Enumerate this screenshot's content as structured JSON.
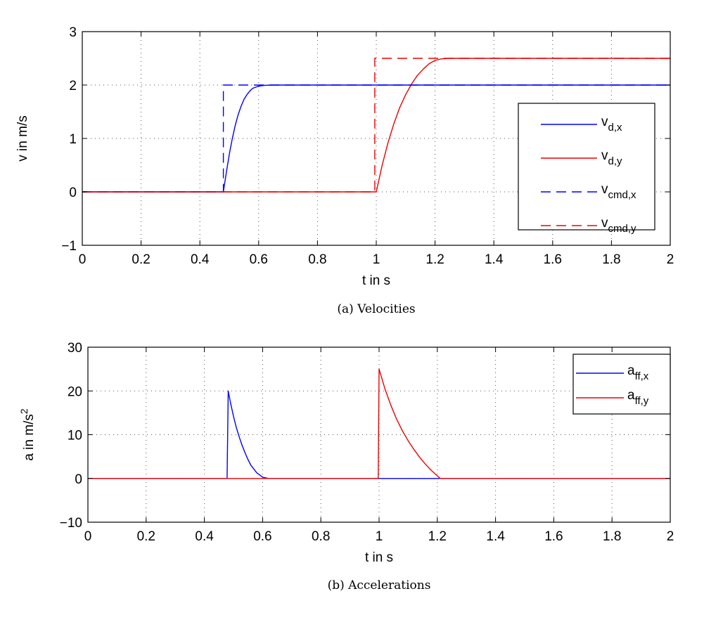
{
  "colors": {
    "blue": "#0000ff",
    "red": "#ee0000"
  },
  "chart_data": [
    {
      "type": "line",
      "title": "",
      "caption": "(a) Velocities",
      "xlabel": "t in s",
      "ylabel": "v in m/s",
      "xlim": [
        0,
        2
      ],
      "ylim": [
        -1,
        3
      ],
      "xticks": [
        0,
        0.2,
        0.4,
        0.6,
        0.8,
        1,
        1.2,
        1.4,
        1.6,
        1.8,
        2
      ],
      "xtick_labels": [
        "0",
        "0.2",
        "0.4",
        "0.6",
        "0.8",
        "1",
        "1.2",
        "1.4",
        "1.6",
        "1.8",
        "2"
      ],
      "yticks": [
        -1,
        0,
        1,
        2,
        3
      ],
      "ytick_labels": [
        "−1",
        "0",
        "1",
        "2",
        "3"
      ],
      "grid": true,
      "legend_position": "right",
      "series": [
        {
          "name": "v_d,x",
          "label_main": "v",
          "label_sub": "d,x",
          "color": "#0000ff",
          "dash": "solid",
          "x": [
            0,
            0.48,
            0.49,
            0.5,
            0.51,
            0.52,
            0.53,
            0.54,
            0.55,
            0.56,
            0.57,
            0.58,
            0.6,
            0.62,
            0.65,
            2
          ],
          "y": [
            0,
            0,
            0.36,
            0.7,
            0.99,
            1.24,
            1.44,
            1.6,
            1.73,
            1.82,
            1.89,
            1.94,
            1.98,
            1.995,
            2.0,
            2.0
          ]
        },
        {
          "name": "v_d,y",
          "label_main": "v",
          "label_sub": "d,y",
          "color": "#ee0000",
          "dash": "solid",
          "x": [
            0,
            1.0,
            1.02,
            1.04,
            1.06,
            1.08,
            1.1,
            1.12,
            1.14,
            1.16,
            1.18,
            1.2,
            1.22,
            1.25,
            2
          ],
          "y": [
            0,
            0,
            0.5,
            0.92,
            1.28,
            1.58,
            1.82,
            2.02,
            2.18,
            2.3,
            2.4,
            2.46,
            2.49,
            2.5,
            2.5
          ]
        },
        {
          "name": "v_cmd,x",
          "label_main": "v",
          "label_sub": "cmd,x",
          "color": "#0000ff",
          "dash": "dashed",
          "x": [
            0,
            0.48,
            0.48,
            2
          ],
          "y": [
            0,
            0,
            2,
            2
          ]
        },
        {
          "name": "v_cmd,y",
          "label_main": "v",
          "label_sub": "cmd,y",
          "color": "#ee0000",
          "dash": "dashed",
          "x": [
            0,
            0.995,
            0.995,
            2
          ],
          "y": [
            0,
            0,
            2.5,
            2.5
          ]
        }
      ]
    },
    {
      "type": "line",
      "title": "",
      "caption": "(b) Accelerations",
      "xlabel": "t in s",
      "ylabel": "a in m/s",
      "ylabel_sup": "2",
      "xlim": [
        0,
        2
      ],
      "ylim": [
        -10,
        30
      ],
      "xticks": [
        0,
        0.2,
        0.4,
        0.6,
        0.8,
        1,
        1.2,
        1.4,
        1.6,
        1.8,
        2
      ],
      "xtick_labels": [
        "0",
        "0.2",
        "0.4",
        "0.6",
        "0.8",
        "1",
        "1.2",
        "1.4",
        "1.6",
        "1.8",
        "2"
      ],
      "yticks": [
        -10,
        0,
        10,
        20,
        30
      ],
      "ytick_labels": [
        "−10",
        "0",
        "10",
        "20",
        "30"
      ],
      "grid": true,
      "legend_position": "top-right",
      "series": [
        {
          "name": "a_ff,x",
          "label_main": "a",
          "label_sub": "ff,x",
          "color": "#0000ff",
          "dash": "solid",
          "x": [
            0,
            0.478,
            0.482,
            0.49,
            0.5,
            0.51,
            0.52,
            0.53,
            0.54,
            0.55,
            0.56,
            0.58,
            0.6,
            0.62,
            2
          ],
          "y": [
            0,
            0,
            20,
            17.2,
            14.2,
            11.6,
            9.4,
            7.5,
            5.8,
            4.3,
            3.0,
            1.3,
            0.3,
            0,
            0
          ]
        },
        {
          "name": "a_ff,y",
          "label_main": "a",
          "label_sub": "ff,y",
          "color": "#ee0000",
          "dash": "solid",
          "x": [
            0,
            0.997,
            1.0,
            1.02,
            1.04,
            1.06,
            1.08,
            1.1,
            1.12,
            1.14,
            1.16,
            1.18,
            1.2,
            1.21,
            2
          ],
          "y": [
            0,
            0,
            25,
            20.5,
            16.8,
            13.6,
            10.9,
            8.6,
            6.6,
            4.8,
            3.2,
            1.8,
            0.6,
            0,
            0
          ]
        }
      ]
    }
  ]
}
